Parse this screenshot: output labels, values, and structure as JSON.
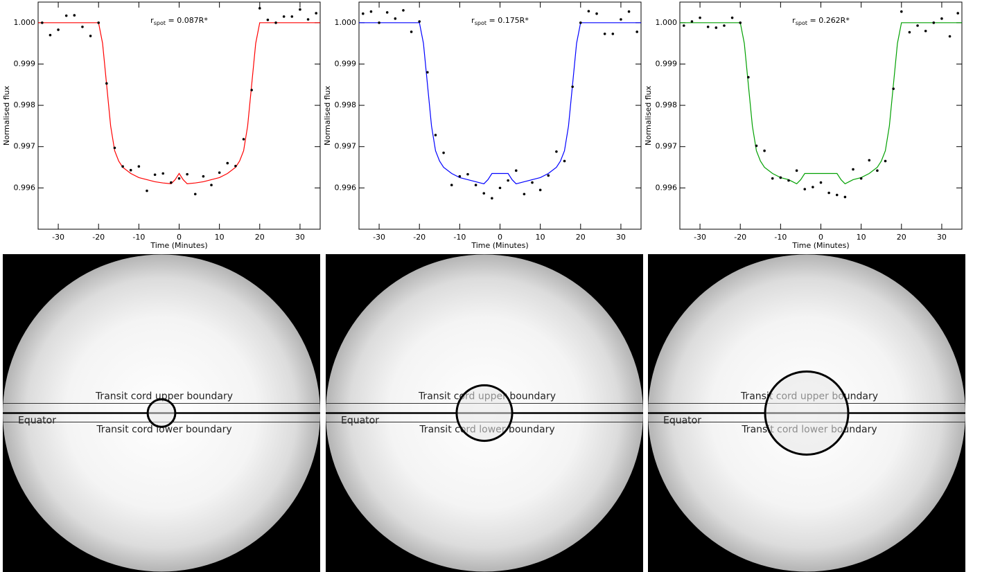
{
  "chart_data": [
    {
      "type": "line",
      "title": [
        "r",
        "spot",
        " = 0.087R*"
      ],
      "xlabel": "Time (Minutes)",
      "ylabel": "Normalised flux",
      "xlim": [
        -35,
        35
      ],
      "xticks": [
        -30,
        -20,
        -10,
        0,
        10,
        20,
        30
      ],
      "ylim": [
        0.995,
        1.0005
      ],
      "yticks": [
        {
          "value": 1,
          "label": "1.000"
        },
        0.999,
        0.998,
        0.997,
        0.996
      ],
      "series": [
        {
          "style": "line",
          "color": "#ff0000",
          "x": [
            -35,
            -20,
            -19,
            -18,
            -17,
            -16,
            -15,
            -14,
            -12,
            -10,
            -8,
            -6,
            -4,
            -2,
            -1,
            0,
            1,
            2,
            4,
            6,
            8,
            10,
            12,
            14,
            15,
            16,
            17,
            18,
            19,
            20,
            35
          ],
          "values": [
            1,
            1,
            0.9995,
            0.9985,
            0.9975,
            0.9969,
            0.99665,
            0.9965,
            0.99635,
            0.99625,
            0.9962,
            0.99615,
            0.99612,
            0.9961,
            0.9962,
            0.99635,
            0.9962,
            0.9961,
            0.99612,
            0.99615,
            0.9962,
            0.99625,
            0.99635,
            0.9965,
            0.99665,
            0.9969,
            0.9975,
            0.9985,
            0.9995,
            1,
            1
          ]
        },
        {
          "style": "points",
          "color": "#000000",
          "x": [
            -34,
            -32,
            -30,
            -28,
            -26,
            -24,
            -22,
            -20,
            -18,
            -16,
            -14,
            -12,
            -10,
            -8,
            -6,
            -4,
            -2,
            0,
            2,
            4,
            6,
            8,
            10,
            12,
            14,
            16,
            18,
            20,
            22,
            24,
            26,
            28,
            30,
            32,
            34
          ],
          "values": [
            1,
            0.9997,
            0.99983,
            1.00017,
            1.00018,
            0.9999,
            0.99968,
            1,
            0.99853,
            0.99697,
            0.99652,
            0.99643,
            0.99652,
            0.99593,
            0.99632,
            0.99635,
            0.99613,
            0.99623,
            0.99633,
            0.99585,
            0.99628,
            0.99607,
            0.99637,
            0.9966,
            0.99653,
            0.99718,
            0.99837,
            1.00035,
            1.00007,
            1,
            1.00015,
            1.00015,
            1.00032,
            1.00008,
            1.00023
          ]
        }
      ]
    },
    {
      "type": "line",
      "title": [
        "r",
        "spot",
        " = 0.175R*"
      ],
      "xlabel": "Time (Minutes)",
      "ylabel": "Normalised flux",
      "xlim": [
        -35,
        35
      ],
      "xticks": [
        -30,
        -20,
        -10,
        0,
        10,
        20,
        30
      ],
      "ylim": [
        0.995,
        1.0005
      ],
      "yticks": [
        {
          "value": 1,
          "label": "1.000"
        },
        0.999,
        0.998,
        0.997,
        0.996
      ],
      "series": [
        {
          "style": "line",
          "color": "#0000ff",
          "x": [
            -35,
            -20,
            -19,
            -18,
            -17,
            -16,
            -15,
            -14,
            -12,
            -10,
            -8,
            -6,
            -4,
            -3,
            -2,
            2,
            3,
            4,
            6,
            8,
            10,
            12,
            14,
            15,
            16,
            17,
            18,
            19,
            20,
            35
          ],
          "values": [
            1,
            1,
            0.9995,
            0.9985,
            0.9975,
            0.9969,
            0.99665,
            0.9965,
            0.99635,
            0.99625,
            0.9962,
            0.99615,
            0.9961,
            0.9962,
            0.99635,
            0.99635,
            0.9962,
            0.9961,
            0.99615,
            0.9962,
            0.99625,
            0.99635,
            0.9965,
            0.99665,
            0.9969,
            0.9975,
            0.9985,
            0.9995,
            1,
            1
          ]
        },
        {
          "style": "points",
          "color": "#000000",
          "x": [
            -34,
            -32,
            -30,
            -28,
            -26,
            -24,
            -22,
            -20,
            -18,
            -16,
            -14,
            -12,
            -10,
            -8,
            -6,
            -4,
            -2,
            0,
            2,
            4,
            6,
            8,
            10,
            12,
            14,
            16,
            18,
            20,
            22,
            24,
            26,
            28,
            30,
            32,
            34
          ],
          "values": [
            1.00022,
            1.00027,
            1,
            1.00025,
            1.0001,
            1.0003,
            0.99978,
            1.00003,
            0.9988,
            0.99728,
            0.99685,
            0.99607,
            0.99628,
            0.99633,
            0.99607,
            0.99587,
            0.99575,
            0.996,
            0.99618,
            0.99642,
            0.99585,
            0.99613,
            0.99595,
            0.9963,
            0.99688,
            0.99665,
            0.99845,
            1,
            1.00028,
            1.00022,
            0.99973,
            0.99973,
            1.00008,
            1.00027,
            0.99978
          ]
        }
      ]
    },
    {
      "type": "line",
      "title": [
        "r",
        "spot",
        " = 0.262R*"
      ],
      "xlabel": "Time (Minutes)",
      "ylabel": "Normalised flux",
      "xlim": [
        -35,
        35
      ],
      "xticks": [
        -30,
        -20,
        -10,
        0,
        10,
        20,
        30
      ],
      "ylim": [
        0.995,
        1.0005
      ],
      "yticks": [
        {
          "value": 1,
          "label": "1.000"
        },
        0.999,
        0.998,
        0.997,
        0.996
      ],
      "series": [
        {
          "style": "line",
          "color": "#00a000",
          "x": [
            -35,
            -20,
            -19,
            -18,
            -17,
            -16,
            -15,
            -14,
            -12,
            -10,
            -8,
            -7,
            -6,
            -5,
            -4,
            4,
            5,
            6,
            7,
            8,
            10,
            12,
            14,
            15,
            16,
            17,
            18,
            19,
            20,
            35
          ],
          "values": [
            1,
            1,
            0.9995,
            0.9985,
            0.9975,
            0.9969,
            0.99665,
            0.9965,
            0.99635,
            0.99625,
            0.9962,
            0.99615,
            0.9961,
            0.9962,
            0.99635,
            0.99635,
            0.9962,
            0.9961,
            0.99615,
            0.9962,
            0.99625,
            0.99635,
            0.9965,
            0.99665,
            0.9969,
            0.9975,
            0.9985,
            0.9995,
            1,
            1
          ]
        },
        {
          "style": "points",
          "color": "#000000",
          "x": [
            -34,
            -32,
            -30,
            -28,
            -26,
            -24,
            -22,
            -20,
            -18,
            -16,
            -14,
            -12,
            -10,
            -8,
            -6,
            -4,
            -2,
            0,
            2,
            4,
            6,
            8,
            10,
            12,
            14,
            16,
            18,
            20,
            22,
            24,
            26,
            28,
            30,
            32,
            34
          ],
          "values": [
            0.99993,
            1.00003,
            1.00012,
            0.9999,
            0.99988,
            0.99993,
            1.00012,
            1,
            0.99868,
            0.99702,
            0.9969,
            0.99623,
            0.99625,
            0.99618,
            0.99642,
            0.99597,
            0.99602,
            0.99613,
            0.99588,
            0.99583,
            0.99578,
            0.99645,
            0.99623,
            0.99667,
            0.99642,
            0.99665,
            0.9984,
            1.00027,
            0.99977,
            0.99993,
            0.9998,
            1,
            1.0001,
            0.99967,
            1.00023
          ]
        }
      ]
    }
  ],
  "diagrams": [
    {
      "equator": "Equator",
      "upper": "Transit cord upper boundary",
      "lower": "Transit cord lower boundary",
      "spot_radius": 0.087
    },
    {
      "equator": "Equator",
      "upper": "Transit cord upper boundary",
      "lower": "Transit cord lower boundary",
      "spot_radius": 0.175
    },
    {
      "equator": "Equator",
      "upper": "Transit cord upper boundary",
      "lower": "Transit cord lower boundary",
      "spot_radius": 0.262
    }
  ]
}
